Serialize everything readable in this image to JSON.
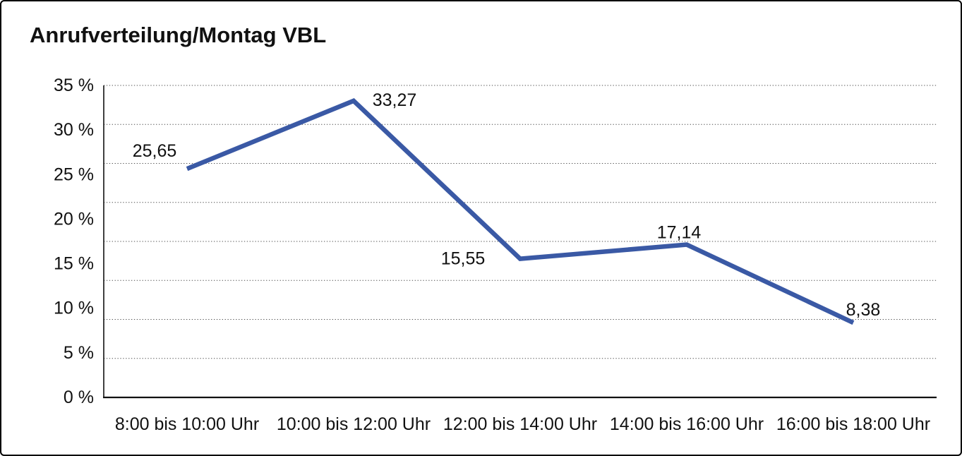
{
  "title": "Anrufverteilung/Montag VBL",
  "chart_data": {
    "type": "line",
    "title": "Anrufverteilung/Montag VBL",
    "categories": [
      "8:00 bis 10:00 Uhr",
      "10:00 bis 12:00 Uhr",
      "12:00 bis 14:00 Uhr",
      "14:00 bis 16:00 Uhr",
      "16:00 bis 18:00 Uhr"
    ],
    "series": [
      {
        "name": "Anrufverteilung Montag VBL",
        "values": [
          25.65,
          33.27,
          15.55,
          17.14,
          8.38
        ],
        "data_labels": [
          "25,65",
          "33,27",
          "15,55",
          "17,14",
          "8,38"
        ]
      }
    ],
    "xlabel": "",
    "ylabel": "",
    "unit": "%",
    "ylim": [
      0,
      35
    ],
    "y_tick_step": 5,
    "y_tick_labels": [
      "35 %",
      "30 %",
      "25 %",
      "20 %",
      "15 %",
      "10 %",
      "5 %",
      "0 %"
    ],
    "grid": "horizontal-dotted",
    "grid_line_count": 9,
    "legend": "none",
    "colors": {
      "line": "#3A59A5",
      "text": "#111111",
      "grid": "#4d4d4d",
      "axis": "#111111",
      "background": "#ffffff"
    }
  }
}
